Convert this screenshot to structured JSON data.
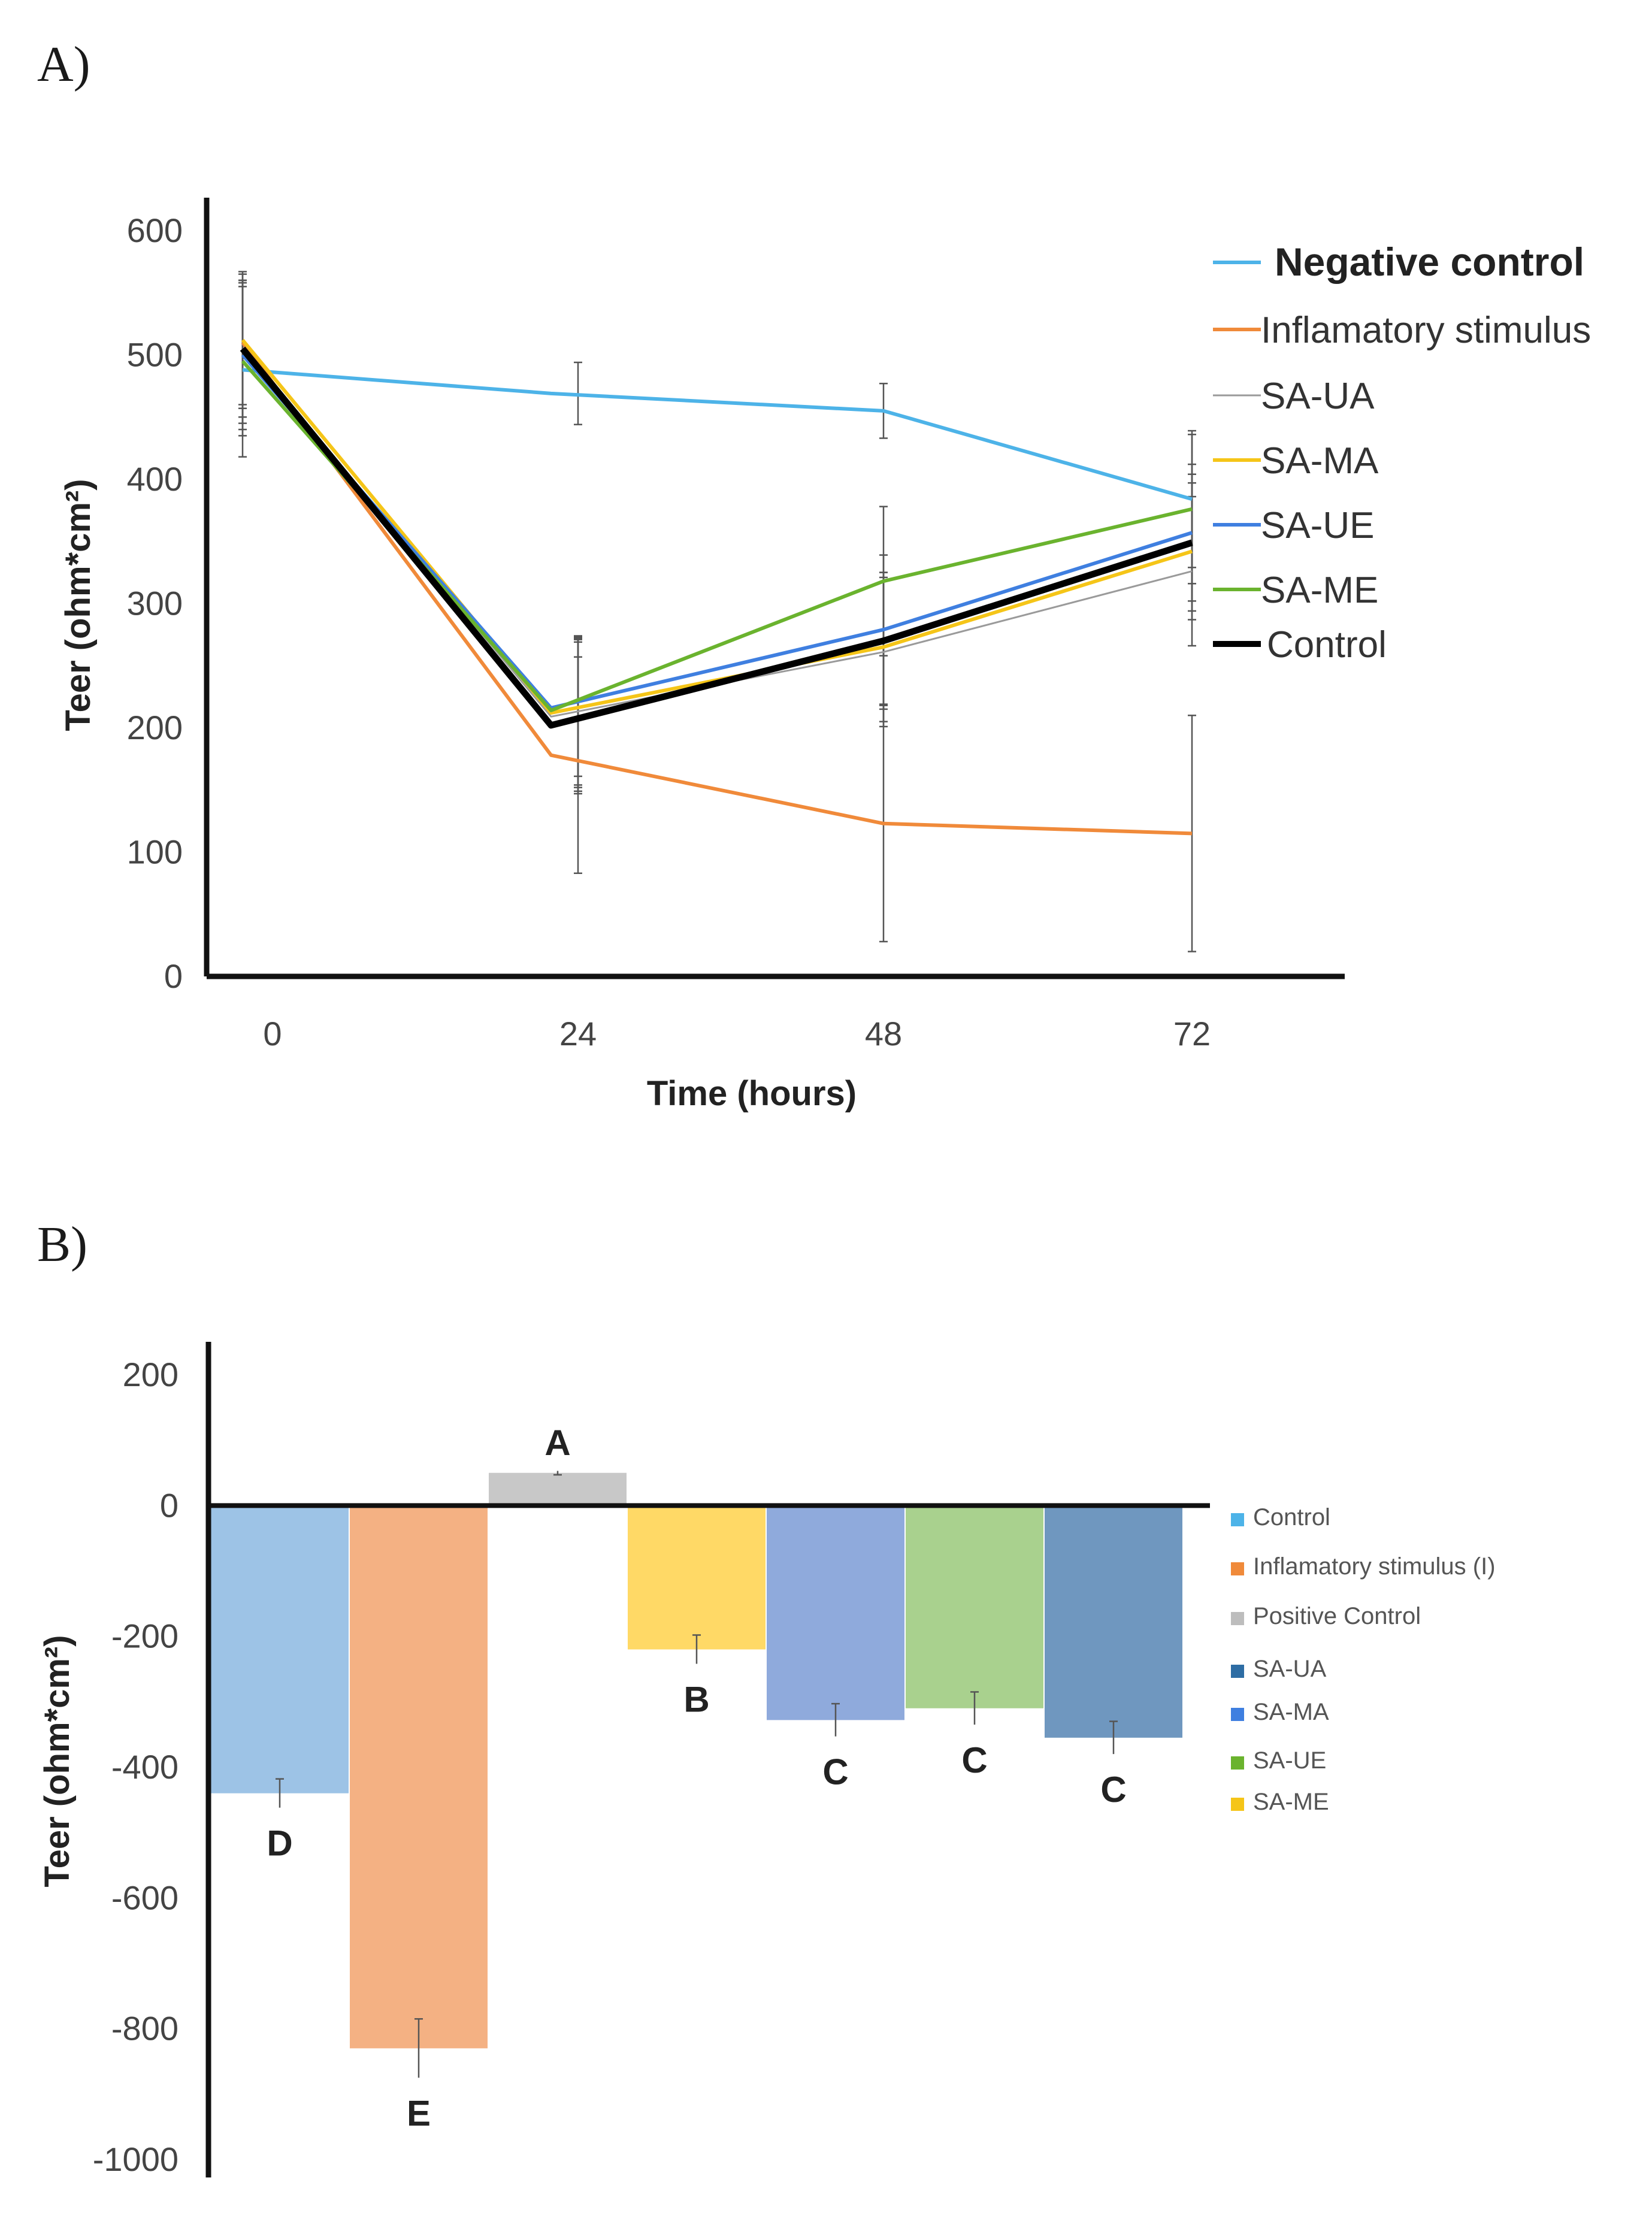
{
  "chart_data": [
    {
      "panel": "A)",
      "type": "line",
      "x": [
        0,
        24,
        48,
        72
      ],
      "x_tick_labels": [
        "0",
        "24",
        "48",
        "72"
      ],
      "xlabel": "Time (hours)",
      "ylabel": "Teer (ohm*cm²)",
      "ylim": [
        0,
        600
      ],
      "y_ticks": [
        0,
        100,
        200,
        300,
        400,
        500,
        600
      ],
      "grid": false,
      "legend_position": "right",
      "series": [
        {
          "name": "Negative control",
          "color": "#4db3e8",
          "values": [
            488,
            469,
            455,
            384
          ],
          "errors": [
            70,
            25,
            22,
            55
          ],
          "bold_label": true
        },
        {
          "name": "Inflamatory stimulus",
          "color": "#f08a3a",
          "values": [
            510,
            178,
            123,
            115
          ],
          "errors": [
            50,
            95,
            95,
            95
          ]
        },
        {
          "name": "SA-UA",
          "color": "#9a9a9a",
          "values": [
            505,
            209,
            261,
            326
          ],
          "errors": [
            60,
            60,
            60,
            60
          ]
        },
        {
          "name": "SA-MA",
          "color": "#f5c518",
          "values": [
            512,
            212,
            265,
            342
          ],
          "errors": [
            55,
            60,
            60,
            55
          ]
        },
        {
          "name": "SA-UE",
          "color": "#3f7fe0",
          "values": [
            500,
            216,
            279,
            357
          ],
          "errors": [
            60,
            55,
            60,
            55
          ]
        },
        {
          "name": "SA-ME",
          "color": "#6ab32e",
          "values": [
            495,
            214,
            318,
            376
          ],
          "errors": [
            60,
            60,
            60,
            60
          ]
        },
        {
          "name": "Control",
          "color": "#000000",
          "values": [
            505,
            202,
            270,
            349
          ],
          "errors": [
            55,
            55,
            55,
            55
          ]
        }
      ]
    },
    {
      "panel": "B)",
      "type": "bar",
      "ylabel": "Teer (ohm*cm²)",
      "ylim": [
        -1000,
        200
      ],
      "y_ticks": [
        200,
        0,
        -200,
        -400,
        -600,
        -800,
        -1000
      ],
      "grid": false,
      "legend_position": "right",
      "categories": [
        "Control",
        "Inflamatory stimulus (I)",
        "Positive Control",
        "SA-UA",
        "SA-MA",
        "SA-UE",
        "SA-ME"
      ],
      "bars": [
        {
          "value": -440,
          "error": 22,
          "letter": "D",
          "color": "#9dc3e6"
        },
        {
          "value": -830,
          "error": 45,
          "letter": "E",
          "color": "#f4b183"
        },
        {
          "value": 50,
          "error": 3,
          "letter": "A",
          "color": "#c8c8c8"
        },
        {
          "value": -220,
          "error": 22,
          "letter": "B",
          "color": "#ffd966"
        },
        {
          "value": -328,
          "error": 25,
          "letter": "C",
          "color": "#8faadc"
        },
        {
          "value": -310,
          "error": 25,
          "letter": "C",
          "color": "#a9d18e"
        },
        {
          "value": -355,
          "error": 25,
          "letter": "C",
          "color": "#6f97bf"
        }
      ],
      "legend": [
        {
          "label": "Control",
          "color": "#4db3e8"
        },
        {
          "label": "Inflamatory stimulus (I)",
          "color": "#f08a3a"
        },
        {
          "label": "Positive Control",
          "color": "#bdbdbd"
        },
        {
          "label": "SA-UA",
          "color": "#2e6da4"
        },
        {
          "label": "SA-MA",
          "color": "#3f7fe0"
        },
        {
          "label": "SA-UE",
          "color": "#6ab32e"
        },
        {
          "label": "SA-ME",
          "color": "#f5c518"
        }
      ]
    }
  ]
}
